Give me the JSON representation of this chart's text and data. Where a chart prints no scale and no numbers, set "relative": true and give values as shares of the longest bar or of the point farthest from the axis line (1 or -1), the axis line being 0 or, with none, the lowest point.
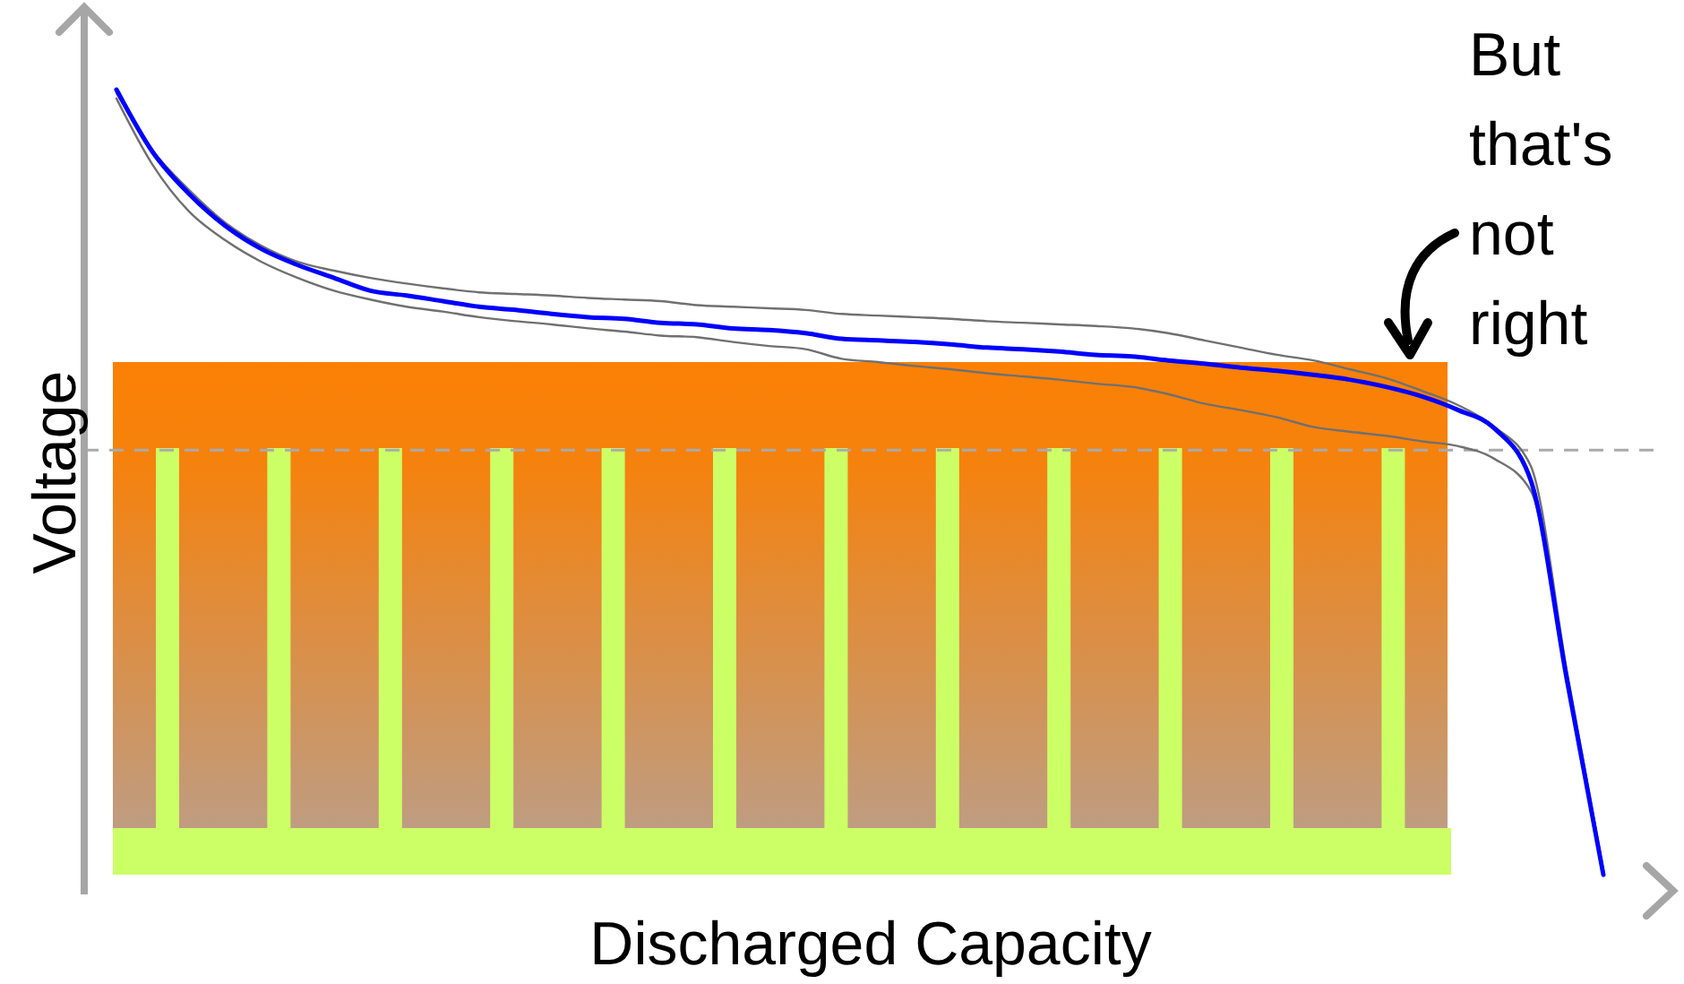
{
  "chart_data": {
    "type": "line",
    "relative": true,
    "xlabel": "Discharged Capacity",
    "ylabel": "Voltage",
    "marker": "none",
    "categories": [
      null,
      null,
      null,
      null,
      null,
      null,
      null,
      null,
      null,
      null,
      null,
      null,
      null,
      null,
      null,
      null,
      null,
      null,
      null,
      null,
      null,
      null,
      null,
      null,
      null,
      null,
      null,
      null,
      null,
      null,
      null,
      null,
      null,
      null,
      null,
      null,
      null,
      null,
      null,
      null,
      null,
      null
    ],
    "series": [
      {
        "color": "#707070",
        "values": [
          0.996,
          0.924,
          0.875,
          0.834,
          0.805,
          0.785,
          0.774,
          0.765,
          0.758,
          0.752,
          0.747,
          0.745,
          0.743,
          0.74,
          0.738,
          0.736,
          0.731,
          0.729,
          0.727,
          0.725,
          0.72,
          0.718,
          0.716,
          0.714,
          0.711,
          0.709,
          0.707,
          0.705,
          0.702,
          0.696,
          0.687,
          0.678,
          0.669,
          0.662,
          0.651,
          0.64,
          0.624,
          0.606,
          0.579,
          0.53,
          0.273,
          0.025
        ]
      },
      {
        "color": "#707070",
        "values": [
          0.989,
          0.906,
          0.848,
          0.812,
          0.785,
          0.765,
          0.749,
          0.738,
          0.729,
          0.723,
          0.716,
          0.711,
          0.707,
          0.702,
          0.698,
          0.693,
          0.691,
          0.685,
          0.68,
          0.676,
          0.664,
          0.66,
          0.655,
          0.651,
          0.646,
          0.642,
          0.638,
          0.633,
          0.629,
          0.62,
          0.608,
          0.6,
          0.591,
          0.579,
          0.573,
          0.568,
          0.561,
          0.555,
          0.539,
          0.499,
          0.266,
          0.025
        ]
      },
      {
        "color": "#0000ff",
        "values": [
          1.0,
          0.922,
          0.87,
          0.83,
          0.801,
          0.781,
          0.765,
          0.749,
          0.743,
          0.736,
          0.729,
          0.725,
          0.72,
          0.716,
          0.714,
          0.709,
          0.707,
          0.702,
          0.7,
          0.696,
          0.689,
          0.687,
          0.685,
          0.682,
          0.678,
          0.676,
          0.673,
          0.669,
          0.667,
          0.662,
          0.658,
          0.653,
          0.649,
          0.644,
          0.638,
          0.629,
          0.617,
          0.6,
          0.577,
          0.512,
          0.262,
          0.02
        ]
      }
    ],
    "ref_lines": [
      {
        "axis": "y",
        "value": 0.55,
        "color": "#aaaaaa",
        "line_style": "dashed"
      }
    ],
    "annotations": [
      "But that's not right"
    ]
  }
}
